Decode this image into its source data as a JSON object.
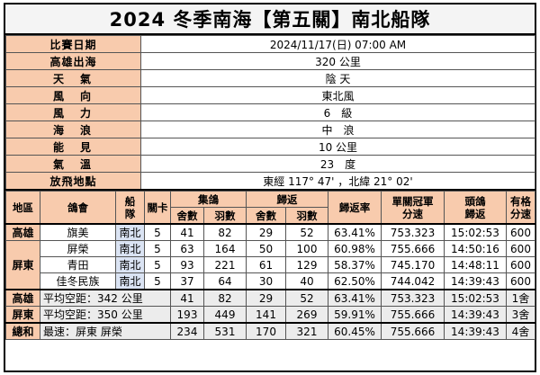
{
  "title": "2024 冬季南海【第五關】南北船隊",
  "info": [
    {
      "label": "比賽日期",
      "value": "2024/11/17(日)   07:00 AM"
    },
    {
      "label": "高雄出海",
      "value": "320 公里"
    },
    {
      "label": "天　氣",
      "value": "陰 天"
    },
    {
      "label": "風　向",
      "value": "東北風"
    },
    {
      "label": "風　力",
      "value": "6　級"
    },
    {
      "label": "海　浪",
      "value": "中　浪"
    },
    {
      "label": "能　見",
      "value": "10 公里"
    },
    {
      "label": "氣　溫",
      "value": "23　度"
    },
    {
      "label": "放飛地點",
      "value": "東經 117° 47' ，北緯 21° 02'"
    }
  ],
  "headers": {
    "region": "地區",
    "club": "鴿會",
    "fleet": "船\n隊",
    "stage": "關卡",
    "collect": "集鴿",
    "collect_houses": "舍數",
    "collect_birds": "羽數",
    "return": "歸返",
    "return_houses": "舍數",
    "return_birds": "羽數",
    "return_rate": "歸返率",
    "speed": "單關冠軍\n分速",
    "first_return": "頭鴿\n歸返",
    "valid_speed": "有格\n分速"
  },
  "rows": [
    {
      "region": "高雄",
      "club": "旗美",
      "fleet": "南北",
      "stage": "5",
      "ch": "41",
      "cb": "82",
      "rh": "29",
      "rb": "52",
      "rate": "63.41%",
      "speed": "753.323",
      "time": "15:02:53",
      "valid": "600"
    },
    {
      "region": "屏東",
      "club": "屏榮",
      "fleet": "南北",
      "stage": "5",
      "ch": "63",
      "cb": "164",
      "rh": "50",
      "rb": "100",
      "rate": "60.98%",
      "speed": "755.666",
      "time": "14:50:16",
      "valid": "600"
    },
    {
      "region": "",
      "club": "青田",
      "fleet": "南北",
      "stage": "5",
      "ch": "93",
      "cb": "221",
      "rh": "61",
      "rb": "129",
      "rate": "58.37%",
      "speed": "745.170",
      "time": "14:48:11",
      "valid": "600"
    },
    {
      "region": "",
      "club": "佳冬民族",
      "fleet": "南北",
      "stage": "5",
      "ch": "37",
      "cb": "64",
      "rh": "30",
      "rb": "40",
      "rate": "62.50%",
      "speed": "744.042",
      "time": "14:39:43",
      "valid": "600"
    }
  ],
  "summary": [
    {
      "region": "高雄",
      "label": "平均空距：342 公里",
      "ch": "41",
      "cb": "82",
      "rh": "29",
      "rb": "52",
      "rate": "63.41%",
      "speed": "753.323",
      "time": "15:02:53",
      "valid": "1舍"
    },
    {
      "region": "屏東",
      "label": "平均空距：350 公里",
      "ch": "193",
      "cb": "449",
      "rh": "141",
      "rb": "269",
      "rate": "59.91%",
      "speed": "755.666",
      "time": "14:39:43",
      "valid": "3舍"
    },
    {
      "region": "總和",
      "label": "最速：屏東 屏榮",
      "ch": "234",
      "cb": "531",
      "rh": "170",
      "rb": "321",
      "rate": "60.45%",
      "speed": "755.666",
      "time": "14:39:43",
      "valid": "4舍"
    }
  ],
  "colors": {
    "header_bg": "#f8cbad",
    "fleet_bg": "#dae3f3",
    "summary_bg": "#ececec"
  }
}
